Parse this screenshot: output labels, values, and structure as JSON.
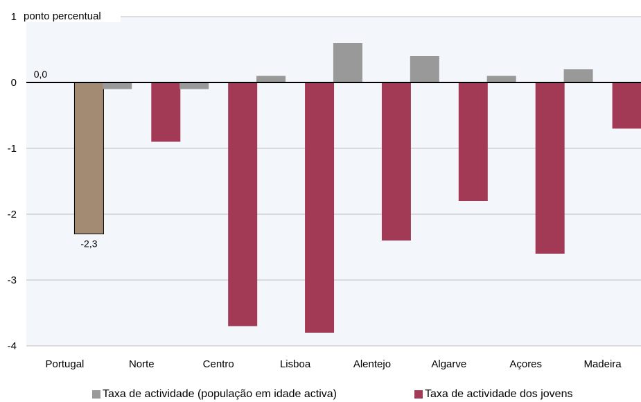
{
  "chart_data": {
    "type": "bar",
    "unit_label": "ponto percentual",
    "categories": [
      "Portugal",
      "Norte",
      "Centro",
      "Lisboa",
      "Alentejo",
      "Algarve",
      "Açores",
      "Madeira"
    ],
    "series": [
      {
        "name": "Taxa de actividade (população em idade activa)",
        "color": "#999999",
        "values": [
          0.0,
          -0.1,
          -0.1,
          0.1,
          0.6,
          0.4,
          0.1,
          0.2
        ]
      },
      {
        "name": "Taxa de actividade dos jovens",
        "color": "#A33A55",
        "values": [
          -2.3,
          -0.9,
          -3.7,
          -3.8,
          -2.4,
          -1.8,
          -2.6,
          -0.7
        ]
      }
    ],
    "highlight": {
      "category": "Portugal",
      "color": "#A38A73"
    },
    "data_labels": [
      "0,0",
      "-2,3"
    ],
    "y_ticks": [
      "1",
      "0",
      "-1",
      "-2",
      "-3",
      "-4"
    ],
    "y_tick_values": [
      1,
      0,
      -1,
      -2,
      -3,
      -4
    ],
    "ylim": [
      -4,
      1
    ],
    "grid": true,
    "legend_position": "bottom",
    "background": "#F3F7FC"
  }
}
